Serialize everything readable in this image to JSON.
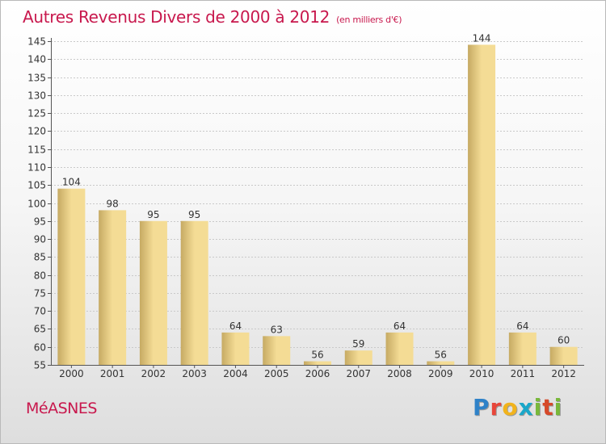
{
  "header": {
    "title": "Autres Revenus Divers de 2000 à 2012",
    "unit": "(en milliers d'€)"
  },
  "footer": {
    "commune": "MéASNES",
    "logo_text": "Proxiti"
  },
  "colors": {
    "title": "#c8184d",
    "bar_light": "#f4dc95",
    "bar_dark": "#c6aa63",
    "grid": "#c9c9c9"
  },
  "chart_data": {
    "type": "bar",
    "title": "Autres Revenus Divers de 2000 à 2012",
    "subtitle": "(en milliers d'€)",
    "categories": [
      "2000",
      "2001",
      "2002",
      "2003",
      "2004",
      "2005",
      "2006",
      "2007",
      "2008",
      "2009",
      "2010",
      "2011",
      "2012"
    ],
    "values": [
      104,
      98,
      95,
      95,
      64,
      63,
      56,
      59,
      64,
      56,
      144,
      64,
      60
    ],
    "data_labels": [
      "104",
      "98",
      "95",
      "95",
      "64",
      "63",
      "56",
      "59",
      "64",
      "56",
      "144",
      "64",
      "60"
    ],
    "xlabel": "",
    "ylabel": "",
    "ylim": [
      55,
      145
    ],
    "yticks": [
      55,
      60,
      65,
      70,
      75,
      80,
      85,
      90,
      95,
      100,
      105,
      110,
      115,
      120,
      125,
      130,
      135,
      140,
      145
    ],
    "grid": true
  }
}
